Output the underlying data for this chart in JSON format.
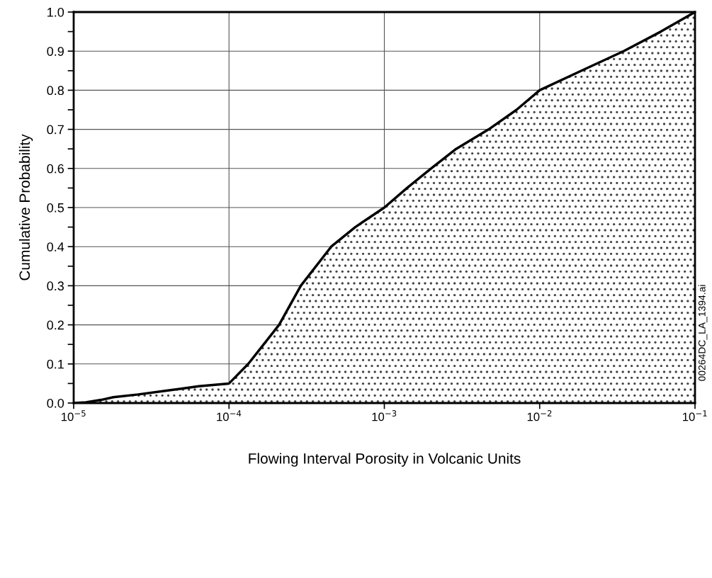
{
  "chart_data": {
    "type": "area",
    "xlabel": "Flowing Interval Porosity in Volcanic Units",
    "ylabel": "Cumulative Probability",
    "log": "x",
    "grid": true,
    "xlim": [
      1e-05,
      0.1
    ],
    "ylim": [
      0,
      1.0
    ],
    "xticks": [
      {
        "value": 1e-05,
        "label": "10$^{−5}$"
      },
      {
        "value": 0.0001,
        "label": "10$^{−4}$"
      },
      {
        "value": 0.001,
        "label": "10$^{−3}$"
      },
      {
        "value": 0.01,
        "label": "10$^{−2}$"
      },
      {
        "value": 0.1,
        "label": "10$^{−1}$"
      }
    ],
    "yticks": [
      {
        "value": 0,
        "label": "0.0"
      },
      {
        "value": 0.05,
        "label": null
      },
      {
        "value": 0.1,
        "label": "0.1"
      },
      {
        "value": 0.15,
        "label": null
      },
      {
        "value": 0.2,
        "label": "0.2"
      },
      {
        "value": 0.25,
        "label": null
      },
      {
        "value": 0.3,
        "label": "0.3"
      },
      {
        "value": 0.35,
        "label": null
      },
      {
        "value": 0.4,
        "label": "0.4"
      },
      {
        "value": 0.45,
        "label": null
      },
      {
        "value": 0.5,
        "label": "0.5"
      },
      {
        "value": 0.55,
        "label": null
      },
      {
        "value": 0.6,
        "label": "0.6"
      },
      {
        "value": 0.65,
        "label": null
      },
      {
        "value": 0.7,
        "label": "0.7"
      },
      {
        "value": 0.75,
        "label": null
      },
      {
        "value": 0.8,
        "label": "0.8"
      },
      {
        "value": 0.85,
        "label": null
      },
      {
        "value": 0.9,
        "label": "0.9"
      },
      {
        "value": 0.95,
        "label": null
      },
      {
        "value": 1.0,
        "label": "1.0"
      }
    ],
    "x": [
      1e-05,
      1.2e-05,
      1.5e-05,
      1.8e-05,
      2.6e-05,
      4.2e-05,
      6.4e-05,
      0.0001,
      0.000133,
      0.00021,
      0.00029,
      0.000455,
      0.00065,
      0.001,
      0.0014,
      0.002,
      0.0029,
      0.0047,
      0.0071,
      0.01,
      0.0186,
      0.0347,
      0.0603,
      0.1
    ],
    "series": [
      {
        "color": "#000000",
        "values": [
          0,
          0.002,
          0.008,
          0.015,
          0.022,
          0.033,
          0.043,
          0.05,
          0.1,
          0.2,
          0.3,
          0.4,
          0.45,
          0.5,
          0.55,
          0.6,
          0.65,
          0.7,
          0.75,
          0.8,
          0.85,
          0.9,
          0.95,
          1.0
        ]
      }
    ],
    "annotations": [
      "00264DC_LA_1394.ai"
    ]
  }
}
